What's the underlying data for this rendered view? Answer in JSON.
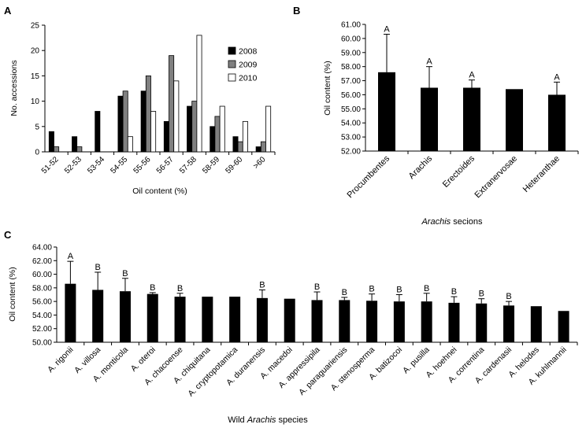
{
  "chart_data": [
    {
      "panel": "A",
      "type": "bar",
      "xlabel": "Oil content (%)",
      "ylabel": "No. accessions",
      "ylim": [
        0,
        25
      ],
      "yticks": [
        0,
        5,
        10,
        15,
        20,
        25
      ],
      "categories": [
        "51-52",
        "52-53",
        "53-54",
        "54-55",
        "55-56",
        "56-57",
        "57-58",
        "58-59",
        "59-60",
        ">60"
      ],
      "legend_position": "top-right",
      "grid": false,
      "series": [
        {
          "name": "2008",
          "color": "#000000",
          "values": [
            4,
            3,
            8,
            11,
            12,
            6,
            9,
            5,
            3,
            1
          ]
        },
        {
          "name": "2009",
          "color": "#808080",
          "values": [
            1,
            1,
            0,
            12,
            15,
            19,
            10,
            7,
            2,
            2
          ]
        },
        {
          "name": "2010",
          "color": "#ffffff",
          "values": [
            0,
            0,
            0,
            3,
            8,
            14,
            23,
            9,
            6,
            9
          ]
        }
      ]
    },
    {
      "panel": "B",
      "type": "bar",
      "xlabel_parts": [
        "Arachis",
        " secions"
      ],
      "ylabel": "Oil content (%)",
      "ylim": [
        52.0,
        61.0
      ],
      "yticks": [
        "52.00",
        "53.00",
        "54.00",
        "55.00",
        "56.00",
        "57.00",
        "58.00",
        "59.00",
        "60.00",
        "61.00"
      ],
      "categories": [
        "Procumbentes",
        "Arachis",
        "Erectoides",
        "Extranervosae",
        "Heteranthae"
      ],
      "values": [
        57.6,
        56.5,
        56.5,
        56.4,
        56.0
      ],
      "errors": [
        2.7,
        1.5,
        0.55,
        0,
        0.9
      ],
      "letters": [
        "A",
        "A",
        "A",
        "",
        "A"
      ],
      "bar_color": "#000000",
      "grid": false
    },
    {
      "panel": "C",
      "type": "bar",
      "xlabel_parts": [
        "Wild ",
        "Arachis",
        " species"
      ],
      "ylabel": "Oil content (%)",
      "ylim": [
        50.0,
        64.0
      ],
      "yticks": [
        "50.00",
        "52.00",
        "54.00",
        "56.00",
        "58.00",
        "60.00",
        "62.00",
        "64.00"
      ],
      "categories": [
        "A. rigonii",
        "A. villosa",
        "A. monticola",
        "A. oteroi",
        "A. chacoense",
        "A. chiquitana",
        "A. cryptopotamica",
        "A. duranensis",
        "A. macedoi",
        "A. appressipila",
        "A. paraguariensis",
        "A. stenosperma",
        "A. batizocoi",
        "A. pusilla",
        "A. hoehnei",
        "A. correntina",
        "A. cardenasii",
        "A. helodes",
        "A. kuhlmannii"
      ],
      "values": [
        58.6,
        57.7,
        57.5,
        57.1,
        56.7,
        56.7,
        56.7,
        56.5,
        56.4,
        56.2,
        56.2,
        56.1,
        56.0,
        56.0,
        55.8,
        55.7,
        55.4,
        55.3,
        54.6
      ],
      "errors": [
        3.3,
        2.6,
        1.9,
        0.2,
        0.5,
        0,
        0,
        1.2,
        0,
        1.2,
        0.4,
        1.0,
        1.0,
        1.2,
        0.9,
        0.7,
        0.6,
        0,
        0
      ],
      "letters": [
        "A",
        "B",
        "B",
        "B",
        "B",
        "",
        "",
        "B",
        "",
        "B",
        "B",
        "B",
        "B",
        "B",
        "B",
        "B",
        "B",
        "",
        ""
      ],
      "bar_color": "#000000",
      "grid": false
    }
  ],
  "panel_labels": [
    "A",
    "B",
    "C"
  ]
}
